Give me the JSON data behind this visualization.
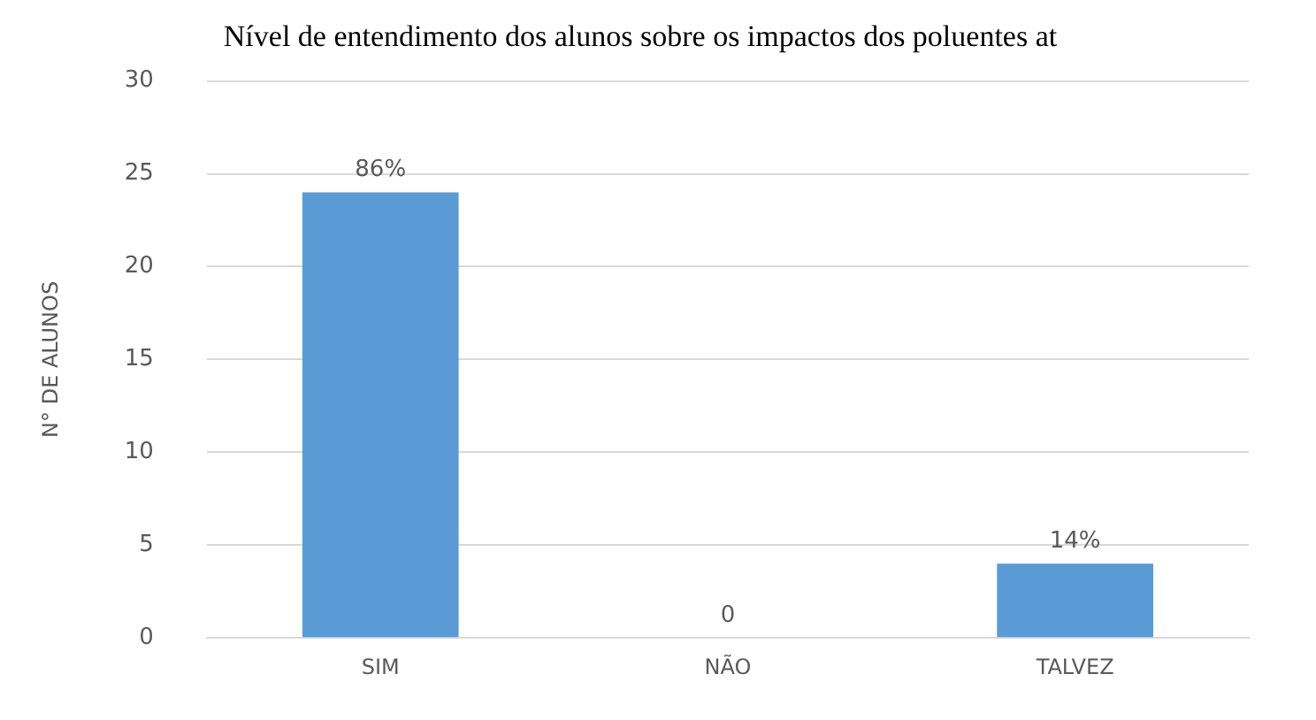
{
  "chart_data": {
    "type": "bar",
    "title": "Nível de entendimento dos alunos sobre os impactos dos poluentes at",
    "ylabel": "N° DE ALUNOS",
    "categories": [
      "SIM",
      "NÃO",
      "TALVEZ"
    ],
    "values": [
      24,
      0,
      4
    ],
    "annotations": [
      {
        "text": "86%",
        "x": "SIM",
        "y": 24
      },
      {
        "text": "0",
        "x": "NÃO",
        "y": 0
      },
      {
        "text": "14%",
        "x": "TALVEZ",
        "y": 4
      }
    ],
    "color": "#5b9bd5",
    "ylim": [
      0,
      30
    ],
    "yticks": [
      0,
      5,
      10,
      15,
      20,
      25,
      30
    ],
    "grid": "y",
    "legend": false
  }
}
